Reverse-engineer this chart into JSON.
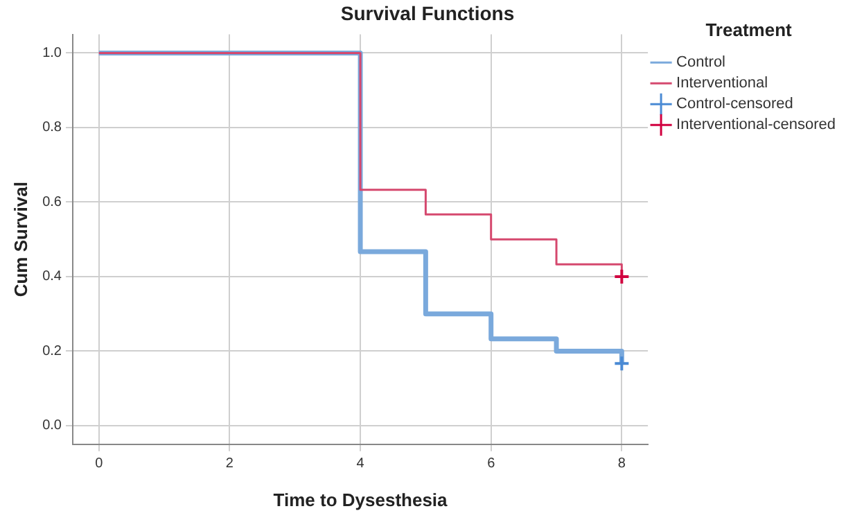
{
  "chart_data": {
    "type": "step",
    "title": "Survival Functions",
    "xlabel": "Time to Dysesthesia",
    "ylabel": "Cum Survival",
    "legend_title": "Treatment",
    "series": [
      {
        "name": "Control",
        "type": "step",
        "color": "#7aa9dc",
        "x": [
          0,
          4,
          5,
          6,
          7,
          8
        ],
        "values": [
          1.0,
          0.467,
          0.3,
          0.233,
          0.2,
          0.167
        ]
      },
      {
        "name": "Interventional",
        "type": "step",
        "color": "#d5486e",
        "x": [
          0,
          4,
          5,
          6,
          7,
          8
        ],
        "values": [
          1.0,
          0.633,
          0.567,
          0.5,
          0.433,
          0.4
        ]
      },
      {
        "name": "Control-censored",
        "type": "scatter",
        "color": "#4a8ad4",
        "marker": "cross",
        "x": [
          8
        ],
        "values": [
          0.167
        ]
      },
      {
        "name": "Interventional-censored",
        "type": "scatter",
        "color": "#d1003f",
        "marker": "cross",
        "x": [
          8
        ],
        "values": [
          0.4
        ]
      }
    ],
    "xlim": [
      -0.4,
      8.4
    ],
    "xticks": [
      0,
      2,
      4,
      6,
      8
    ],
    "ylim": [
      -0.05,
      1.05
    ],
    "yticks": [
      {
        "value": 0,
        "label": "0.0"
      },
      {
        "value": 0.2,
        "label": "0.2"
      },
      {
        "value": 0.4,
        "label": "0.4"
      },
      {
        "value": 0.6,
        "label": "0.6"
      },
      {
        "value": 0.8,
        "label": "0.8"
      },
      {
        "value": 1,
        "label": "1.0"
      }
    ],
    "grid": true,
    "legend": "right"
  }
}
